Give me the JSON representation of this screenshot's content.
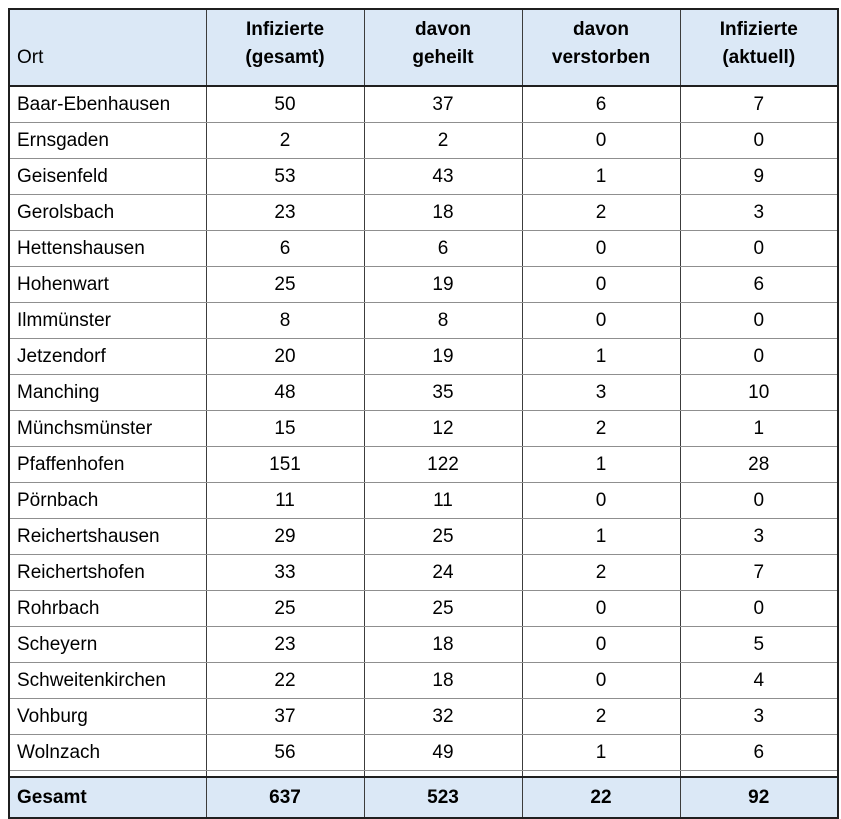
{
  "colors": {
    "header_bg": "#dbe8f6",
    "footer_bg": "#dbe8f6",
    "border_dark": "#1f1f1f",
    "grid_dark": "#3c3c3c",
    "grid_gray": "#8f8f8f"
  },
  "table": {
    "header": {
      "ort": "Ort",
      "gesamt_line1": "Infizierte",
      "gesamt_line2": "(gesamt)",
      "geheilt_line1": "davon",
      "geheilt_line2": "geheilt",
      "verstorben_line1": "davon",
      "verstorben_line2": "verstorben",
      "aktuell_line1": "Infizierte",
      "aktuell_line2": "(aktuell)"
    },
    "rows": [
      {
        "ort": "Baar-Ebenhausen",
        "gesamt": "50",
        "geheilt": "37",
        "verstorben": "6",
        "aktuell": "7"
      },
      {
        "ort": "Ernsgaden",
        "gesamt": "2",
        "geheilt": "2",
        "verstorben": "0",
        "aktuell": "0"
      },
      {
        "ort": "Geisenfeld",
        "gesamt": "53",
        "geheilt": "43",
        "verstorben": "1",
        "aktuell": "9"
      },
      {
        "ort": "Gerolsbach",
        "gesamt": "23",
        "geheilt": "18",
        "verstorben": "2",
        "aktuell": "3"
      },
      {
        "ort": "Hettenshausen",
        "gesamt": "6",
        "geheilt": "6",
        "verstorben": "0",
        "aktuell": "0"
      },
      {
        "ort": "Hohenwart",
        "gesamt": "25",
        "geheilt": "19",
        "verstorben": "0",
        "aktuell": "6"
      },
      {
        "ort": "Ilmmünster",
        "gesamt": "8",
        "geheilt": "8",
        "verstorben": "0",
        "aktuell": "0"
      },
      {
        "ort": "Jetzendorf",
        "gesamt": "20",
        "geheilt": "19",
        "verstorben": "1",
        "aktuell": "0"
      },
      {
        "ort": "Manching",
        "gesamt": "48",
        "geheilt": "35",
        "verstorben": "3",
        "aktuell": "10"
      },
      {
        "ort": "Münchsmünster",
        "gesamt": "15",
        "geheilt": "12",
        "verstorben": "2",
        "aktuell": "1"
      },
      {
        "ort": "Pfaffenhofen",
        "gesamt": "151",
        "geheilt": "122",
        "verstorben": "1",
        "aktuell": "28"
      },
      {
        "ort": "Pörnbach",
        "gesamt": "11",
        "geheilt": "11",
        "verstorben": "0",
        "aktuell": "0"
      },
      {
        "ort": "Reichertshausen",
        "gesamt": "29",
        "geheilt": "25",
        "verstorben": "1",
        "aktuell": "3"
      },
      {
        "ort": "Reichertshofen",
        "gesamt": "33",
        "geheilt": "24",
        "verstorben": "2",
        "aktuell": "7"
      },
      {
        "ort": "Rohrbach",
        "gesamt": "25",
        "geheilt": "25",
        "verstorben": "0",
        "aktuell": "0"
      },
      {
        "ort": "Scheyern",
        "gesamt": "23",
        "geheilt": "18",
        "verstorben": "0",
        "aktuell": "5"
      },
      {
        "ort": "Schweitenkirchen",
        "gesamt": "22",
        "geheilt": "18",
        "verstorben": "0",
        "aktuell": "4"
      },
      {
        "ort": "Vohburg",
        "gesamt": "37",
        "geheilt": "32",
        "verstorben": "2",
        "aktuell": "3"
      },
      {
        "ort": "Wolnzach",
        "gesamt": "56",
        "geheilt": "49",
        "verstorben": "1",
        "aktuell": "6"
      }
    ],
    "footer": {
      "ort": "Gesamt",
      "gesamt": "637",
      "geheilt": "523",
      "verstorben": "22",
      "aktuell": "92"
    }
  }
}
